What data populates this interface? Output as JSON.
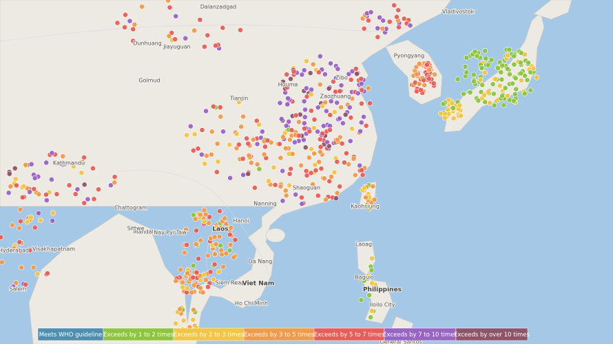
{
  "map": {
    "labels": [
      "Dalanzadgad",
      "Vladivostok",
      "Dunhuang",
      "Jiayuguan",
      "Golmud",
      "Pyongyang",
      "Zibo",
      "Houma",
      "Zaozhuang",
      "Tianjin",
      "Kathmandu",
      "Chattogram",
      "Mandalay",
      "Sittwe",
      "Nay Pyi Taw",
      "Laos",
      "Hanoi",
      "Da Nang",
      "Siem Reap",
      "Viet Nam",
      "Ho Chi Minh",
      "Laoag",
      "Baguio",
      "Philippines",
      "Iloilo City",
      "General Santos",
      "Hyderabad",
      "Visakhapatnam",
      "Salem",
      "Shaoguan",
      "Nanning",
      "Kaohsiung"
    ],
    "legend": [
      {
        "label": "Meets WHO guideline",
        "color": "#4d8fb3"
      },
      {
        "label": "Exceeds by 1 to 2 times",
        "color": "#8cc63f"
      },
      {
        "label": "Exceeds by 2 to 3 times",
        "color": "#f4c542"
      },
      {
        "label": "Exceeds by 3 to 5 times",
        "color": "#f29a4a"
      },
      {
        "label": "Exceeds by 5 to 7 times",
        "color": "#ea5d57"
      },
      {
        "label": "Exceeds by 7 to 10 times",
        "color": "#9a63c6"
      },
      {
        "label": "Exceeds by over 10 times",
        "color": "#8e5468"
      }
    ]
  }
}
